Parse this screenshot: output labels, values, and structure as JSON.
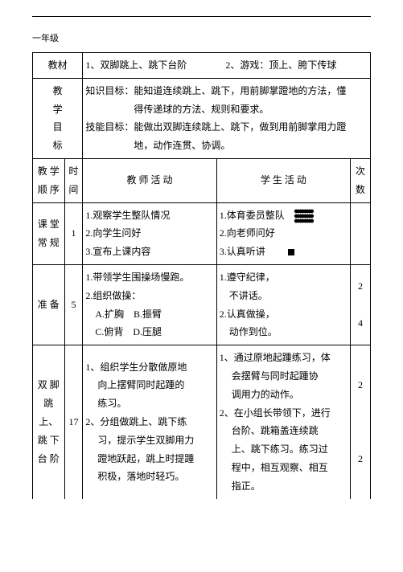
{
  "grade": "一年级",
  "labels": {
    "material": "教材",
    "goals": "教学目标",
    "sequence": "教学顺序",
    "time": "时间",
    "teacher": "教 师 活 动",
    "student": "学 生 活 动",
    "count": "次数"
  },
  "material_text": "1、双脚跳上、跳下台阶　　　　2、游戏：顶上、胯下传球",
  "goals_text": "知识目标：能知道连续跳上、跳下，用前脚掌蹬地的方法，懂\n　　　　　得传递球的方法、规则和要求。\n技能目标：能做出双脚连续跳上、跳下，做到用前脚掌用力蹬\n　　　　　地，动作连贯、协调。",
  "rows": [
    {
      "seq": "课堂常规",
      "time": "1",
      "teacher": "1.观察学生整队情况\n2.向学生问好\n3.宣布上课内容",
      "student_lines": [
        "1.体育委员整队",
        "2.向老师问好",
        "3.认真听讲"
      ],
      "count": ""
    },
    {
      "seq": "准 备",
      "time": "5",
      "teacher": "1.带领学生围操场慢跑。\n2.组织做操：\n　A.扩胸　B.振臂\n　C.俯背　D.压腿",
      "student_lines": [
        "1.遵守纪律，",
        "　不讲话。",
        "2.认真做操，",
        "　动作到位。"
      ],
      "count": "2\n\n4"
    },
    {
      "seq": "双脚跳上、跳下台阶",
      "time": "17",
      "teacher": "1、组织学生分散做原地\n　 向上摆臂同时起踵的\n　 练习。\n2、分组做跳上、跳下练\n　 习，提示学生双脚用力\n　 蹬地跃起，跳上时提踵\n　 积极，落地时轻巧。",
      "student_lines": [
        "1、通过原地起踵练习，体",
        "　 会摆臂与同时起踵协",
        "　 调用力的动作。",
        "2、在小组长带领下，进行",
        "　 台阶、跳箱盖连续跳",
        "　 上、跳下练习。练习过",
        "　 程中，相互观察、相互",
        "　 指正。"
      ],
      "count": "2\n\n\n\n2"
    }
  ]
}
